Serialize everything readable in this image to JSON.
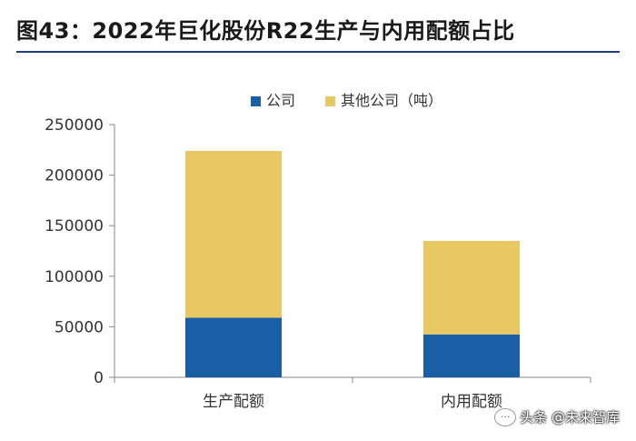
{
  "header": {
    "title": "图43：2022年巨化股份R22生产与内用配额占比"
  },
  "chart_data": {
    "type": "bar",
    "stacked": true,
    "categories": [
      "生产配额",
      "内用配额"
    ],
    "series": [
      {
        "name": "公司",
        "color": "#1a5fa6",
        "values": [
          59000,
          42500
        ]
      },
      {
        "name": "其他公司（吨）",
        "color": "#e8c862",
        "values": [
          165000,
          92500
        ]
      }
    ],
    "ylim": [
      0,
      250000
    ],
    "yticks": [
      0,
      50000,
      100000,
      150000,
      200000,
      250000
    ],
    "ytick_labels": [
      "0",
      "50000",
      "100000",
      "150000",
      "200000",
      "250000"
    ],
    "legend_position": "top-center",
    "grid": false
  },
  "watermark": {
    "text": "头条 @未来智库",
    "icon": "chat-bubble-icon"
  }
}
